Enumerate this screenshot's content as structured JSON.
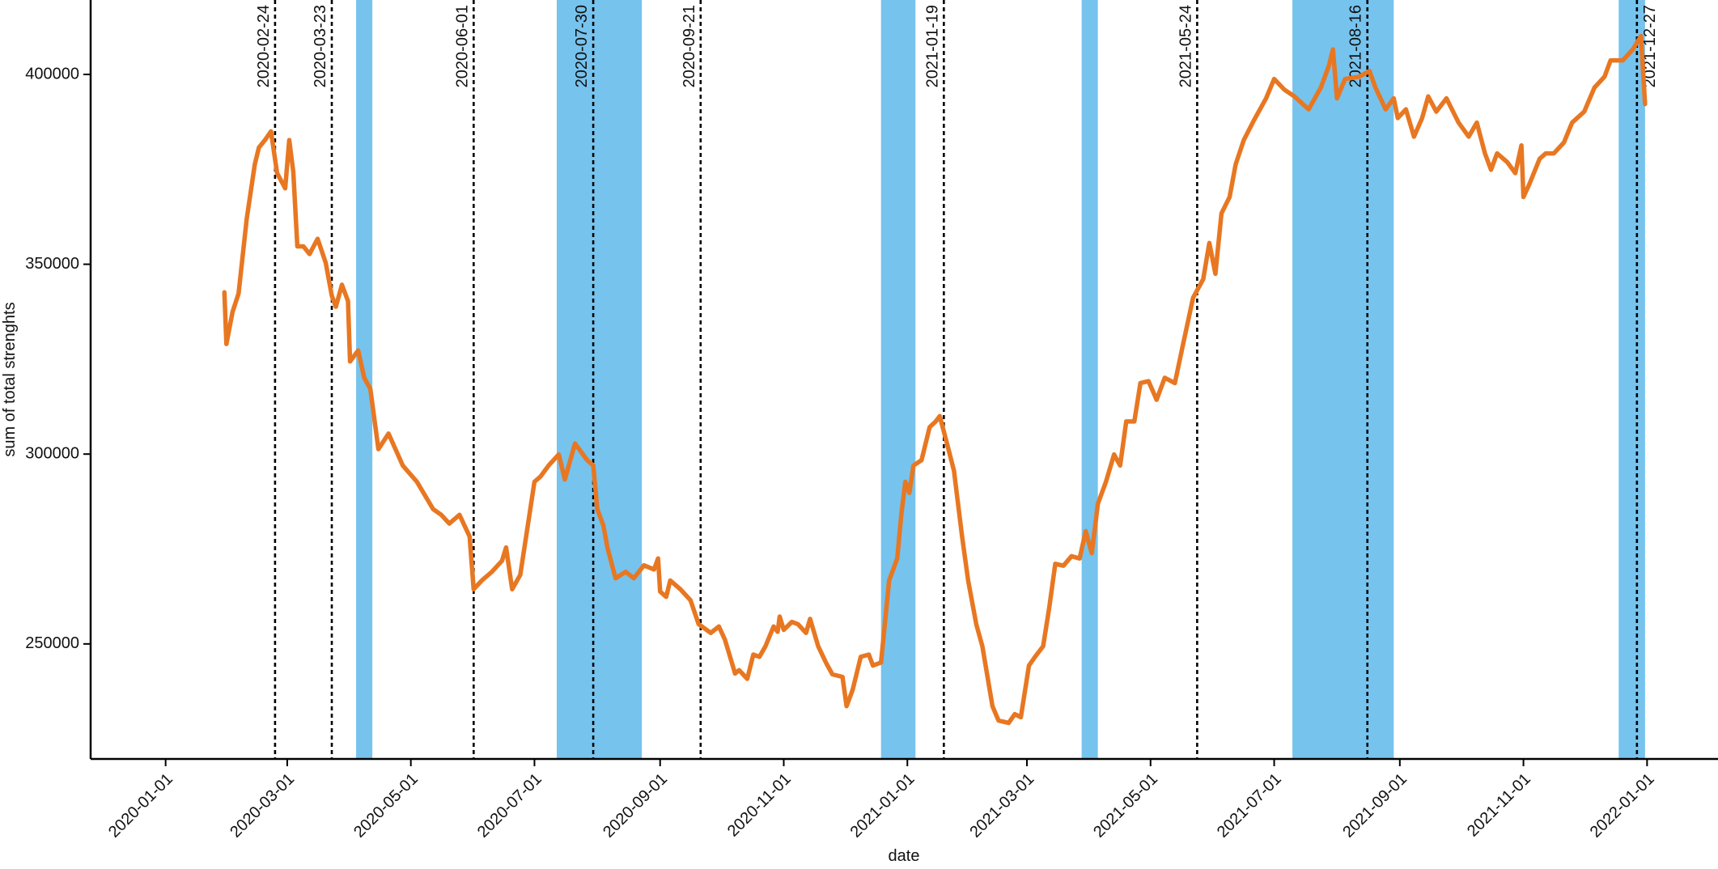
{
  "chart_data": {
    "type": "line",
    "x_label": "date",
    "y_label": "sum of total strenghts",
    "xlim": [
      "2019-11-25",
      "2022-02-05"
    ],
    "ylim": [
      219700,
      419600
    ],
    "xticks": [
      "2020-01-01",
      "2020-03-01",
      "2020-05-01",
      "2020-07-01",
      "2020-09-01",
      "2020-11-01",
      "2021-01-01",
      "2021-03-01",
      "2021-05-01",
      "2021-07-01",
      "2021-09-01",
      "2021-11-01",
      "2022-01-01"
    ],
    "yticks": [
      250000,
      300000,
      350000,
      400000
    ],
    "grid": false,
    "span_color": "#76c3ee",
    "spans": [
      {
        "start": "2020-04-04",
        "end": "2020-04-12"
      },
      {
        "start": "2020-07-12",
        "end": "2020-08-23"
      },
      {
        "start": "2020-12-19",
        "end": "2021-01-05"
      },
      {
        "start": "2021-03-28",
        "end": "2021-04-05"
      },
      {
        "start": "2021-07-10",
        "end": "2021-08-29"
      },
      {
        "start": "2021-12-18",
        "end": "2021-12-31"
      }
    ],
    "events": [
      "2020-02-24",
      "2020-03-23",
      "2020-06-01",
      "2020-07-30",
      "2020-09-21",
      "2021-01-19",
      "2021-05-24",
      "2021-08-16",
      "2021-12-27"
    ],
    "x": [
      "2020-01-30",
      "2020-01-31",
      "2020-02-03",
      "2020-02-06",
      "2020-02-10",
      "2020-02-14",
      "2020-02-16",
      "2020-02-19",
      "2020-02-22",
      "2020-02-25",
      "2020-02-29",
      "2020-03-02",
      "2020-03-04",
      "2020-03-06",
      "2020-03-09",
      "2020-03-12",
      "2020-03-16",
      "2020-03-20",
      "2020-03-23",
      "2020-03-25",
      "2020-03-28",
      "2020-03-31",
      "2020-04-01",
      "2020-04-05",
      "2020-04-08",
      "2020-04-11",
      "2020-04-15",
      "2020-04-20",
      "2020-04-27",
      "2020-05-04",
      "2020-05-12",
      "2020-05-16",
      "2020-05-20",
      "2020-05-25",
      "2020-05-30",
      "2020-06-01",
      "2020-06-05",
      "2020-06-10",
      "2020-06-15",
      "2020-06-17",
      "2020-06-20",
      "2020-06-24",
      "2020-07-01",
      "2020-07-04",
      "2020-07-08",
      "2020-07-13",
      "2020-07-16",
      "2020-07-21",
      "2020-07-27",
      "2020-07-30",
      "2020-08-01",
      "2020-08-04",
      "2020-08-06",
      "2020-08-10",
      "2020-08-15",
      "2020-08-19",
      "2020-08-24",
      "2020-08-29",
      "2020-08-31",
      "2020-09-01",
      "2020-09-04",
      "2020-09-06",
      "2020-09-11",
      "2020-09-16",
      "2020-09-20",
      "2020-09-26",
      "2020-09-30",
      "2020-10-03",
      "2020-10-08",
      "2020-10-10",
      "2020-10-14",
      "2020-10-17",
      "2020-10-20",
      "2020-10-23",
      "2020-10-27",
      "2020-10-29",
      "2020-10-30",
      "2020-11-01",
      "2020-11-05",
      "2020-11-08",
      "2020-11-12",
      "2020-11-14",
      "2020-11-18",
      "2020-11-22",
      "2020-11-25",
      "2020-11-30",
      "2020-12-02",
      "2020-12-05",
      "2020-12-09",
      "2020-12-13",
      "2020-12-15",
      "2020-12-19",
      "2020-12-23",
      "2020-12-27",
      "2020-12-29",
      "2020-12-31",
      "2021-01-02",
      "2021-01-04",
      "2021-01-08",
      "2021-01-12",
      "2021-01-15",
      "2021-01-17",
      "2021-01-21",
      "2021-01-24",
      "2021-01-28",
      "2021-01-31",
      "2021-02-04",
      "2021-02-07",
      "2021-02-12",
      "2021-02-15",
      "2021-02-20",
      "2021-02-23",
      "2021-02-26",
      "2021-03-02",
      "2021-03-05",
      "2021-03-09",
      "2021-03-12",
      "2021-03-15",
      "2021-03-19",
      "2021-03-23",
      "2021-03-27",
      "2021-03-30",
      "2021-04-02",
      "2021-04-05",
      "2021-04-09",
      "2021-04-13",
      "2021-04-16",
      "2021-04-19",
      "2021-04-23",
      "2021-04-26",
      "2021-04-30",
      "2021-05-04",
      "2021-05-08",
      "2021-05-13",
      "2021-05-17",
      "2021-05-22",
      "2021-05-27",
      "2021-05-30",
      "2021-06-02",
      "2021-06-05",
      "2021-06-09",
      "2021-06-12",
      "2021-06-16",
      "2021-06-21",
      "2021-06-27",
      "2021-07-01",
      "2021-07-06",
      "2021-07-11",
      "2021-07-18",
      "2021-07-24",
      "2021-07-28",
      "2021-07-30",
      "2021-08-01",
      "2021-08-05",
      "2021-08-12",
      "2021-08-17",
      "2021-08-20",
      "2021-08-25",
      "2021-08-29",
      "2021-08-31",
      "2021-09-04",
      "2021-09-08",
      "2021-09-12",
      "2021-09-15",
      "2021-09-19",
      "2021-09-24",
      "2021-09-30",
      "2021-10-05",
      "2021-10-09",
      "2021-10-13",
      "2021-10-16",
      "2021-10-19",
      "2021-10-24",
      "2021-10-28",
      "2021-10-31",
      "2021-11-01",
      "2021-11-04",
      "2021-11-09",
      "2021-11-12",
      "2021-11-16",
      "2021-11-21",
      "2021-11-25",
      "2021-12-01",
      "2021-12-06",
      "2021-12-11",
      "2021-12-14",
      "2021-12-20",
      "2021-12-25",
      "2021-12-29",
      "2021-12-31"
    ],
    "series": [
      {
        "color": "#e87722",
        "values": [
          342600,
          329000,
          337400,
          342300,
          361900,
          376300,
          380700,
          382700,
          385000,
          374000,
          370000,
          382700,
          374300,
          354700,
          354700,
          352700,
          356700,
          350400,
          341700,
          338800,
          344600,
          340300,
          324400,
          327300,
          320100,
          317200,
          301300,
          305400,
          297000,
          292700,
          285500,
          284000,
          281700,
          284000,
          278300,
          264400,
          266700,
          269000,
          271900,
          275400,
          264400,
          268200,
          292700,
          294100,
          297000,
          299900,
          293300,
          302800,
          298400,
          297000,
          285500,
          281200,
          275400,
          267300,
          269000,
          267300,
          270700,
          269600,
          272500,
          263800,
          262400,
          266700,
          264400,
          261500,
          255200,
          252900,
          254600,
          251100,
          242200,
          243100,
          240800,
          247200,
          246600,
          249400,
          254600,
          253200,
          257200,
          253700,
          255800,
          255200,
          252900,
          256600,
          249400,
          244900,
          242000,
          241300,
          233600,
          237900,
          246600,
          247200,
          244300,
          245100,
          266700,
          272500,
          284000,
          292700,
          289800,
          297000,
          298400,
          307100,
          308600,
          310000,
          301900,
          295600,
          278300,
          266700,
          255200,
          249400,
          233600,
          229800,
          229200,
          231500,
          230700,
          244300,
          246600,
          249400,
          259500,
          271100,
          270600,
          273100,
          272500,
          279700,
          273900,
          286900,
          292700,
          299900,
          297000,
          308600,
          308600,
          318700,
          319200,
          314300,
          320100,
          318700,
          328800,
          341200,
          346100,
          355600,
          347500,
          363400,
          367700,
          376300,
          382700,
          387900,
          393700,
          398800,
          396000,
          394200,
          390800,
          396500,
          402300,
          406600,
          393700,
          398800,
          399400,
          400900,
          396500,
          390800,
          393700,
          388500,
          390800,
          383600,
          388500,
          394200,
          390200,
          393700,
          387300,
          383600,
          387300,
          379200,
          374900,
          379200,
          376900,
          374000,
          381300,
          367700,
          371200,
          377800,
          379200,
          379200,
          382100,
          387300,
          390200,
          396500,
          399400,
          403700,
          403700,
          406600,
          410100,
          392200
        ]
      }
    ]
  }
}
